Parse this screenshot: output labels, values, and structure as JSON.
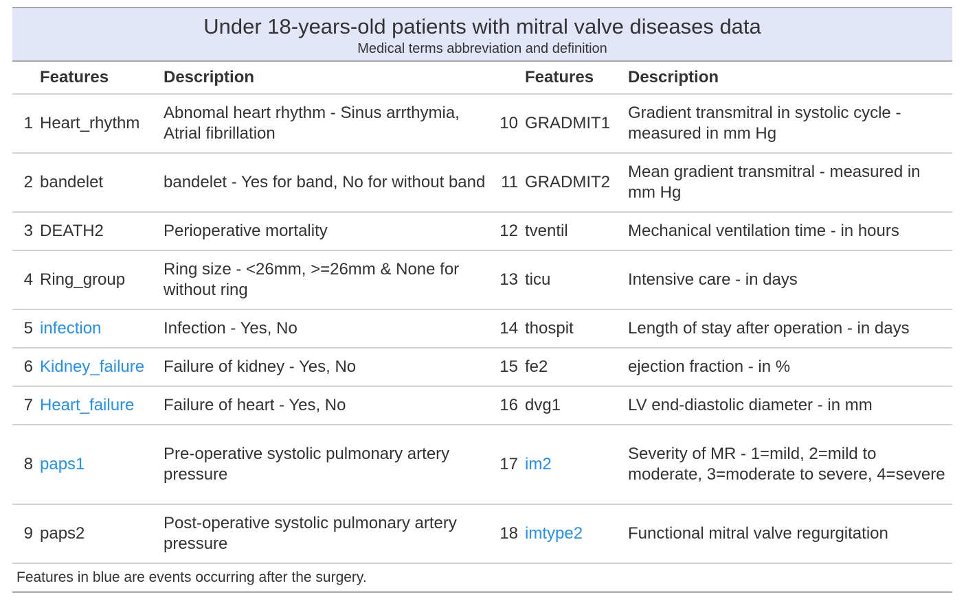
{
  "title": "Under 18-years-old patients with mitral valve diseases data",
  "subtitle": "Medical terms abbreviation and definition",
  "headers": {
    "features_left": "Features",
    "description_left": "Description",
    "features_right": "Features",
    "description_right": "Description"
  },
  "rows": [
    {
      "n1": "1",
      "f1": "Heart_rhythm",
      "d1": "Abnomal heart rhythm - Sinus arrthymia, Atrial fibrillation",
      "n2": "10",
      "f2": "GRADMIT1",
      "d2": "Gradient transmitral in systolic cycle - measured in mm Hg"
    },
    {
      "n1": "2",
      "f1": "bandelet",
      "d1": "bandelet - Yes for band, No for without band",
      "n2": "11",
      "f2": "GRADMIT2",
      "d2": "Mean gradient transmitral - measured in mm Hg"
    },
    {
      "n1": "3",
      "f1": "DEATH2",
      "d1": "Perioperative mortality",
      "n2": "12",
      "f2": "tventil",
      "d2": "Mechanical ventilation time - in hours"
    },
    {
      "n1": "4",
      "f1": "Ring_group",
      "d1": "Ring size - <26mm, >=26mm & None for without ring",
      "n2": "13",
      "f2": "ticu",
      "d2": "Intensive care - in days"
    },
    {
      "n1": "5",
      "f1": "infection",
      "d1": "Infection - Yes, No",
      "n2": "14",
      "f2": "thospit",
      "d2": "Length of stay after operation - in days"
    },
    {
      "n1": "6",
      "f1": "Kidney_failure",
      "d1": "Failure of kidney - Yes, No",
      "n2": "15",
      "f2": "fe2",
      "d2": "ejection fraction - in %"
    },
    {
      "n1": "7",
      "f1": "Heart_failure",
      "d1": "Failure of heart - Yes, No",
      "n2": "16",
      "f2": "dvg1",
      "d2": "LV end-diastolic diameter - in mm"
    },
    {
      "n1": "8",
      "f1": "paps1",
      "d1": "Pre-operative systolic pulmonary artery pressure",
      "n2": "17",
      "f2": "im2",
      "d2": "Severity of MR - 1=mild, 2=mild to moderate, 3=moderate to severe, 4=severe"
    },
    {
      "n1": "9",
      "f1": "paps2",
      "d1": "Post-operative systolic pulmonary artery pressure",
      "n2": "18",
      "f2": "imtype2",
      "d2": "Functional mitral valve regurgitation"
    }
  ],
  "footnote": "Features in blue are events occurring after the surgery.",
  "colors": {
    "highlight_feature": "#1e90ff",
    "title_background": "#e3e6f9"
  }
}
